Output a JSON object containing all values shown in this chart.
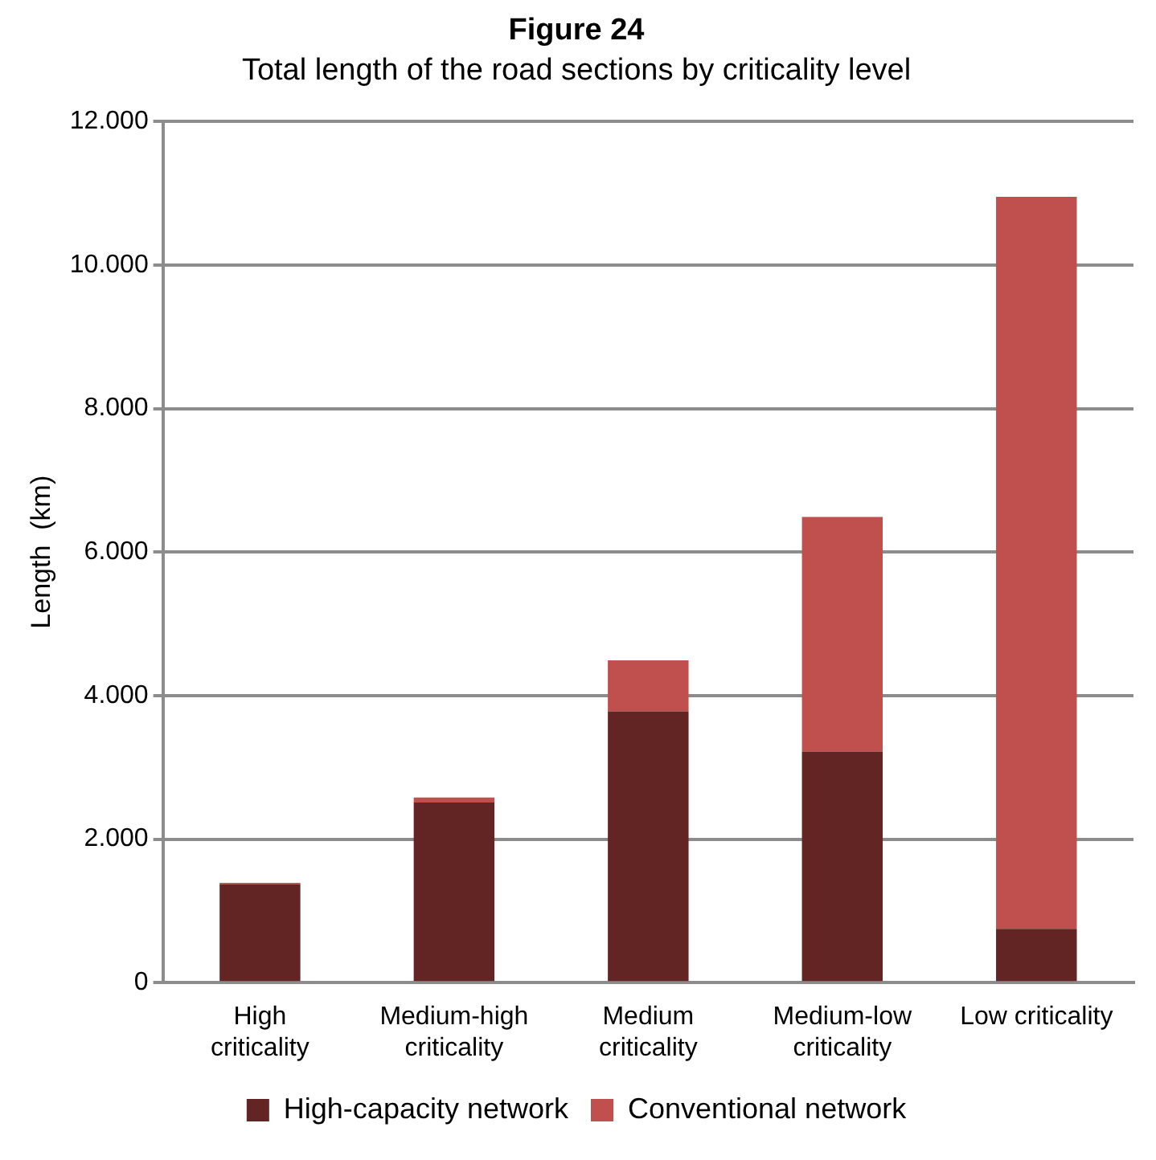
{
  "chart_data": {
    "type": "bar",
    "title": "Figure 24",
    "subtitle": "Total length of the road sections by criticality level",
    "ylabel": "Length  (km)",
    "categories": [
      "High criticality",
      "Medium-high criticality",
      "Medium criticality",
      "Medium-low criticality",
      "Low criticality"
    ],
    "stacked": true,
    "series": [
      {
        "name": "High-capacity network",
        "color": "#632523",
        "values": [
          1370,
          2510,
          3780,
          3220,
          750
        ]
      },
      {
        "name": "Conventional network",
        "color": "#c0504d",
        "values": [
          20,
          70,
          710,
          3270,
          10200
        ]
      }
    ],
    "ylim": [
      0,
      12000
    ],
    "yticks": [
      {
        "value": 0,
        "label": "0"
      },
      {
        "value": 2000,
        "label": "2.000"
      },
      {
        "value": 4000,
        "label": "4.000"
      },
      {
        "value": 6000,
        "label": "6.000"
      },
      {
        "value": 8000,
        "label": "8.000"
      },
      {
        "value": 10000,
        "label": "10.000"
      },
      {
        "value": 12000,
        "label": "12.000"
      }
    ],
    "grid": "y",
    "legend": "bottom"
  }
}
